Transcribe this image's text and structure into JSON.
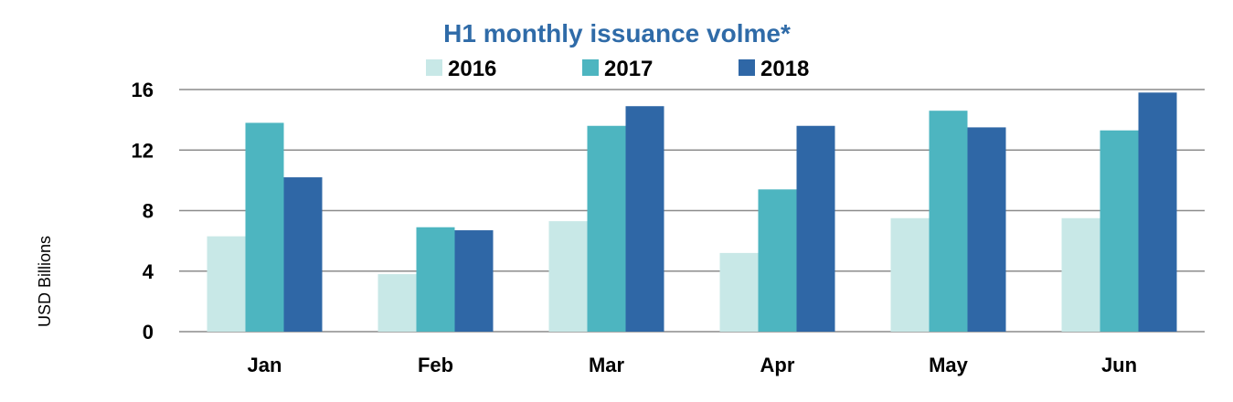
{
  "chart_data": {
    "type": "bar",
    "title": "H1 monthly issuance volme*",
    "ylabel": "USD Billions",
    "xlabel": "",
    "categories": [
      "Jan",
      "Feb",
      "Mar",
      "Apr",
      "May",
      "Jun"
    ],
    "series": [
      {
        "name": "2016",
        "color": "#C8E8E7",
        "values": [
          6.3,
          3.8,
          7.3,
          5.2,
          7.5,
          7.5
        ]
      },
      {
        "name": "2017",
        "color": "#4DB5C0",
        "values": [
          13.8,
          6.9,
          13.6,
          9.4,
          14.6,
          13.3
        ]
      },
      {
        "name": "2018",
        "color": "#2F67A6",
        "values": [
          10.2,
          6.7,
          14.9,
          13.6,
          13.5,
          15.8
        ]
      }
    ],
    "ylim": [
      0,
      16
    ],
    "yticks": [
      0,
      4,
      8,
      12,
      16
    ],
    "grid": true,
    "legend": "top"
  }
}
